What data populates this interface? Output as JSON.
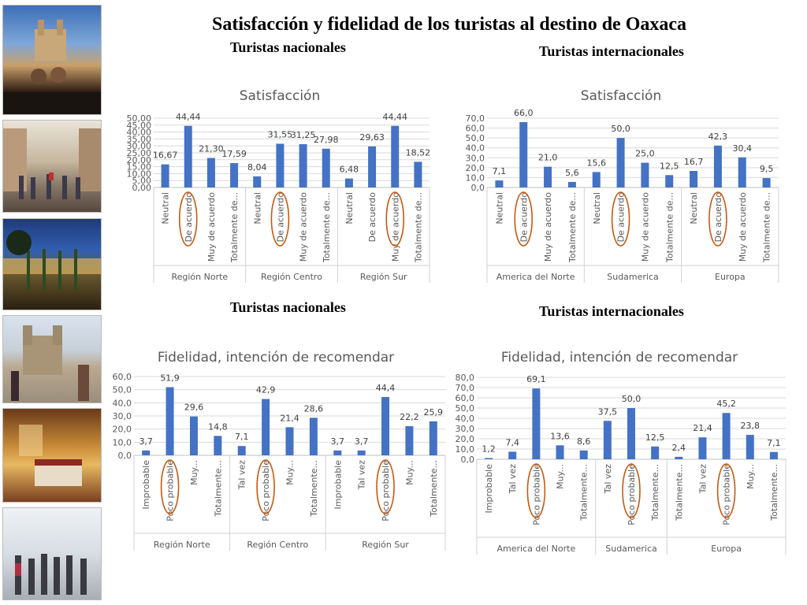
{
  "title": "Satisfacción y fidelidad de los turistas al destino de Oaxaca",
  "subtitles": {
    "top_left": "Turistas nacionales",
    "top_right": "Turistas internacionales",
    "bottom_left": "Turistas nacionales",
    "bottom_right": "Turistas internacionales"
  },
  "colors": {
    "bar": "#4472C4",
    "circle": "#C55A11",
    "grid": "#D9D9D9",
    "axis_text": "#595959"
  },
  "chart_data": [
    {
      "type": "bar",
      "title": "Satisfacción",
      "ylim": [
        0,
        50
      ],
      "yticks": [
        "0,00",
        "5,00",
        "10,00",
        "15,00",
        "20,00",
        "25,00",
        "30,00",
        "35,00",
        "40,00",
        "45,00",
        "50,00"
      ],
      "groups": [
        {
          "name": "Región Norte",
          "categories": [
            "Neutral",
            "De acuerdo",
            "Muy de acuerdo",
            "Totalmente de..."
          ],
          "values": [
            16.67,
            44.44,
            21.3,
            17.59
          ],
          "labels": [
            "16,67",
            "44,44",
            "21,30",
            "17,59"
          ],
          "circled": [
            1
          ]
        },
        {
          "name": "Región Centro",
          "categories": [
            "Neutral",
            "De acuerdo",
            "Muy de acuerdo",
            "Totalmente de..."
          ],
          "values": [
            8.04,
            31.55,
            31.25,
            27.98
          ],
          "labels": [
            "8,04",
            "31,55",
            "31,25",
            "27,98"
          ],
          "circled": [
            1
          ]
        },
        {
          "name": "Región Sur",
          "categories": [
            "Neutral",
            "De acuerdo",
            "Muy de acuerdo",
            "Totalmente de..."
          ],
          "values": [
            6.48,
            29.63,
            44.44,
            18.52
          ],
          "labels": [
            "6,48",
            "29,63",
            "44,44",
            "18,52"
          ],
          "circled": [
            2
          ]
        }
      ]
    },
    {
      "type": "bar",
      "title": "Satisfacción",
      "ylim": [
        0,
        70
      ],
      "yticks": [
        "0,0",
        "10,0",
        "20,0",
        "30,0",
        "40,0",
        "50,0",
        "60,0",
        "70,0"
      ],
      "groups": [
        {
          "name": "America del Norte",
          "categories": [
            "Neutral",
            "De acuerdo",
            "Muy de acuerdo",
            "Totalmente de..."
          ],
          "values": [
            7.1,
            66.0,
            21.0,
            5.6
          ],
          "labels": [
            "7,1",
            "66,0",
            "21,0",
            "5,6"
          ],
          "circled": [
            1
          ]
        },
        {
          "name": "Sudamerica",
          "categories": [
            "Neutral",
            "De acuerdo",
            "Muy de acuerdo",
            "Totalmente de..."
          ],
          "values": [
            15.6,
            50.0,
            25.0,
            12.5
          ],
          "labels": [
            "15,6",
            "50,0",
            "25,0",
            "12,5"
          ],
          "circled": [
            1
          ]
        },
        {
          "name": "Europa",
          "categories": [
            "Neutral",
            "De acuerdo",
            "Muy de acuerdo",
            "Totalmente de..."
          ],
          "values": [
            16.7,
            42.3,
            30.4,
            9.5
          ],
          "labels": [
            "16,7",
            "42,3",
            "30,4",
            "9,5"
          ],
          "circled": [
            1
          ]
        }
      ]
    },
    {
      "type": "bar",
      "title": "Fidelidad, intención de recomendar",
      "ylim": [
        0,
        60
      ],
      "yticks": [
        "0,0",
        "10,0",
        "20,0",
        "30,0",
        "40,0",
        "50,0",
        "60,0"
      ],
      "groups": [
        {
          "name": "Región Norte",
          "categories": [
            "Improbable",
            "Poco probable",
            "Muy...",
            "Totalmente..."
          ],
          "values": [
            3.7,
            51.9,
            29.6,
            14.8
          ],
          "labels": [
            "3,7",
            "51,9",
            "29,6",
            "14,8"
          ],
          "circled": [
            1
          ]
        },
        {
          "name": "Región Centro",
          "categories": [
            "Tal vez",
            "Poco probable",
            "Muy...",
            "Totalmente..."
          ],
          "values": [
            7.1,
            42.9,
            21.4,
            28.6
          ],
          "labels": [
            "7,1",
            "42,9",
            "21,4",
            "28,6"
          ],
          "circled": [
            1
          ]
        },
        {
          "name": "Región Sur",
          "categories": [
            "Improbable",
            "Tal vez",
            "Poco probable",
            "Muy...",
            "Totalmente..."
          ],
          "values": [
            3.7,
            3.7,
            44.4,
            22.2,
            25.9
          ],
          "labels": [
            "3,7",
            "3,7",
            "44,4",
            "22,2",
            "25,9"
          ],
          "circled": [
            2
          ]
        }
      ]
    },
    {
      "type": "bar",
      "title": "Fidelidad, intención de recomendar",
      "ylim": [
        0,
        80
      ],
      "yticks": [
        "0,0",
        "10,0",
        "20,0",
        "30,0",
        "40,0",
        "50,0",
        "60,0",
        "70,0",
        "80,0"
      ],
      "groups": [
        {
          "name": "America del Norte",
          "categories": [
            "Improbable",
            "Tal vez",
            "Poco probable",
            "Muy...",
            "Totalmente..."
          ],
          "values": [
            1.2,
            7.4,
            69.1,
            13.6,
            8.6
          ],
          "labels": [
            "1,2",
            "7,4",
            "69,1",
            "13,6",
            "8,6"
          ],
          "circled": [
            2
          ]
        },
        {
          "name": "Sudamerica",
          "categories": [
            "Tal vez",
            "Poco probable",
            "Totalmente..."
          ],
          "values": [
            37.5,
            50.0,
            12.5
          ],
          "labels": [
            "37,5",
            "50,0",
            "12,5"
          ],
          "circled": [
            1
          ]
        },
        {
          "name": "Europa",
          "categories": [
            "Totalmente...",
            "Tal vez",
            "Poco probable",
            "Muy...",
            "Totalmente..."
          ],
          "values": [
            2.4,
            21.4,
            45.2,
            23.8,
            7.1
          ],
          "labels": [
            "2,4",
            "21,4",
            "45,2",
            "23,8",
            "7,1"
          ],
          "circled": [
            2
          ]
        }
      ]
    }
  ]
}
